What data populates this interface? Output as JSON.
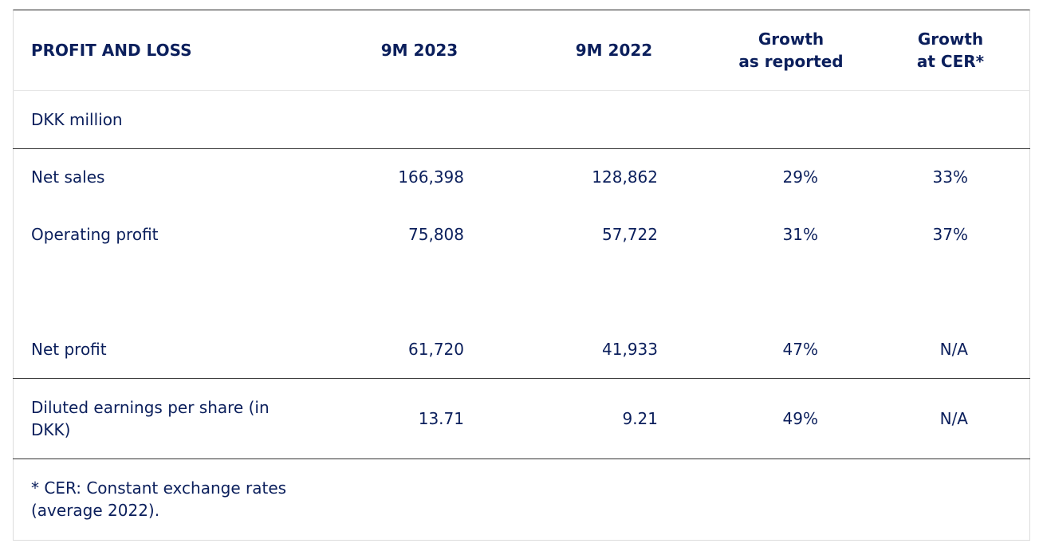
{
  "table": {
    "headers": {
      "label": "PROFIT AND LOSS",
      "col1": "9M 2023",
      "col2": "9M 2022",
      "col3_line1": "Growth",
      "col3_line2": "as reported",
      "col4_line1": "Growth",
      "col4_line2": "at CER*"
    },
    "unit": "DKK million",
    "rows": [
      {
        "label": "Net sales",
        "v2023": "166,398",
        "v2022": "128,862",
        "growth_reported": "29%",
        "growth_cer": "33%"
      },
      {
        "label": "Operating profit",
        "v2023": "75,808",
        "v2022": "57,722",
        "growth_reported": "31%",
        "growth_cer": "37%"
      },
      {
        "label": "Net profit",
        "v2023": "61,720",
        "v2022": "41,933",
        "growth_reported": "47%",
        "growth_cer": "N/A"
      },
      {
        "label_line1": "Diluted earnings per share (in",
        "label_line2": "DKK)",
        "v2023": "13.71",
        "v2022": "9.21",
        "growth_reported": "49%",
        "growth_cer": "N/A"
      }
    ],
    "footnote_line1": "* CER: Constant exchange rates",
    "footnote_line2": "(average 2022)."
  }
}
